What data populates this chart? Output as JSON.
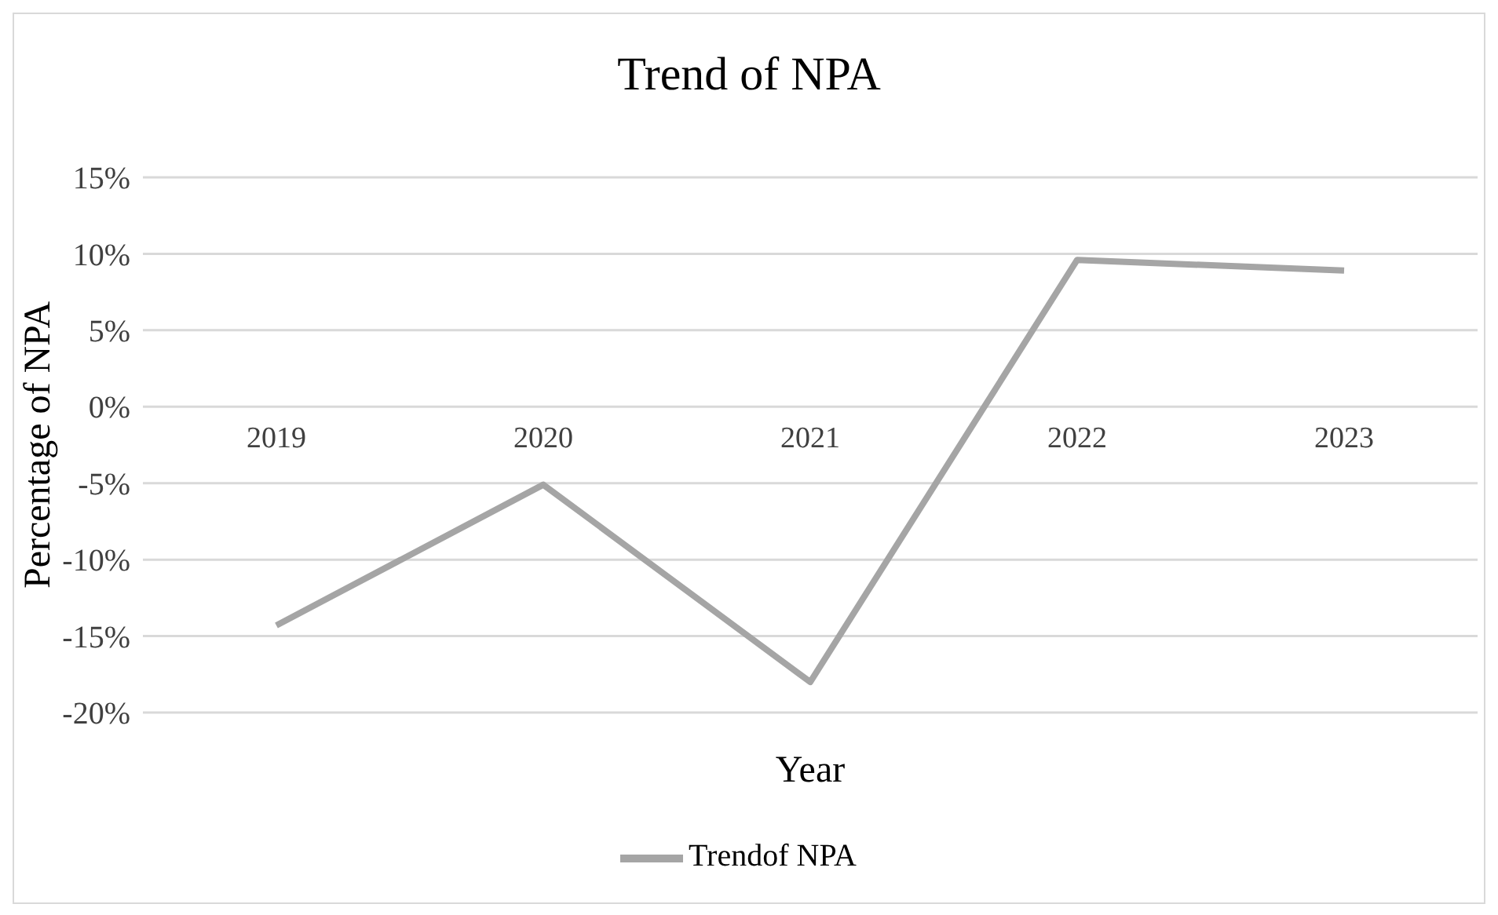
{
  "chart_data": {
    "type": "line",
    "title": "Trend of NPA",
    "xlabel": "Year",
    "ylabel": "Percentage of NPA",
    "categories": [
      "2019",
      "2020",
      "2021",
      "2022",
      "2023"
    ],
    "series": [
      {
        "name": "Trendof NPA",
        "color": "#a5a5a5",
        "values": [
          -14.3,
          -5.1,
          -18.0,
          9.6,
          8.9
        ]
      }
    ],
    "ylim": [
      -20,
      15
    ],
    "yticks": [
      {
        "value": -20,
        "label": "-20%"
      },
      {
        "value": -15,
        "label": "-15%"
      },
      {
        "value": -10,
        "label": "-10%"
      },
      {
        "value": -5,
        "label": "-5%"
      },
      {
        "value": 0,
        "label": "0%"
      },
      {
        "value": 5,
        "label": "5%"
      },
      {
        "value": 10,
        "label": "10%"
      },
      {
        "value": 15,
        "label": "15%"
      }
    ],
    "grid": "y",
    "legend": "bottom",
    "marker": "none",
    "line_style": "solid"
  }
}
